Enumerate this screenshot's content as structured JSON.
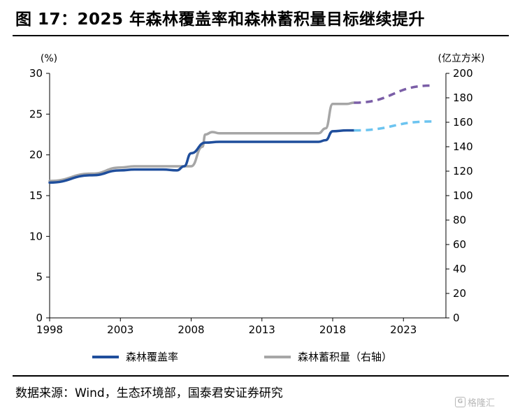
{
  "title": "图 17：2025 年森林覆盖率和森林蓄积量目标继续提升",
  "source": "数据来源：Wind，生态环境部，国泰君安证券研究",
  "watermark": "格隆汇",
  "chart_data": {
    "type": "line",
    "title": "",
    "y_left_unit": "(%)",
    "y_right_unit": "(亿立方米)",
    "xlim": [
      1998,
      2026
    ],
    "ylim_left": [
      0,
      30
    ],
    "ylim_right": [
      0,
      200
    ],
    "x_ticks": [
      1998,
      2003,
      2008,
      2013,
      2018,
      2023
    ],
    "y_left_ticks": [
      0,
      5,
      10,
      15,
      20,
      25,
      30
    ],
    "y_right_ticks": [
      0,
      20,
      40,
      60,
      80,
      100,
      120,
      140,
      160,
      180,
      200
    ],
    "grid": false,
    "legend_position": "bottom",
    "series": [
      {
        "name": "森林覆盖率",
        "axis": "left",
        "color": "#1f4e9c",
        "x": [
          1998,
          2001,
          2003,
          2004,
          2005,
          2006,
          2007,
          2007.5,
          2008,
          2009,
          2010,
          2011,
          2013,
          2014,
          2016,
          2017,
          2017.5,
          2018,
          2019,
          2019.5
        ],
        "values": [
          16.6,
          17.5,
          18.1,
          18.2,
          18.2,
          18.2,
          18.1,
          18.6,
          20.2,
          21.5,
          21.6,
          21.6,
          21.6,
          21.6,
          21.6,
          21.6,
          21.8,
          22.9,
          23.0,
          23.0
        ]
      },
      {
        "name": "森林蓄积量（右轴）",
        "axis": "right",
        "color": "#a6a6a6",
        "x": [
          1998,
          2001,
          2003,
          2004,
          2005,
          2006,
          2007,
          2007.5,
          2008,
          2008.8,
          2009,
          2009.5,
          2010,
          2013,
          2014,
          2016,
          2017,
          2017.5,
          2018,
          2019,
          2019.5
        ],
        "values": [
          112,
          118,
          123,
          124,
          124,
          124,
          124,
          124,
          124,
          140,
          150,
          152,
          151,
          151,
          151,
          151,
          151,
          155,
          175,
          175,
          176
        ]
      },
      {
        "name": "",
        "axis": "left",
        "style": "dashed",
        "color": "#6cc4f0",
        "x": [
          2019.5,
          2025
        ],
        "values": [
          23.0,
          24.1
        ]
      },
      {
        "name": "",
        "axis": "right",
        "style": "dashed",
        "color": "#7b5ea7",
        "x": [
          2019.5,
          2025
        ],
        "values": [
          176,
          190
        ]
      }
    ]
  }
}
